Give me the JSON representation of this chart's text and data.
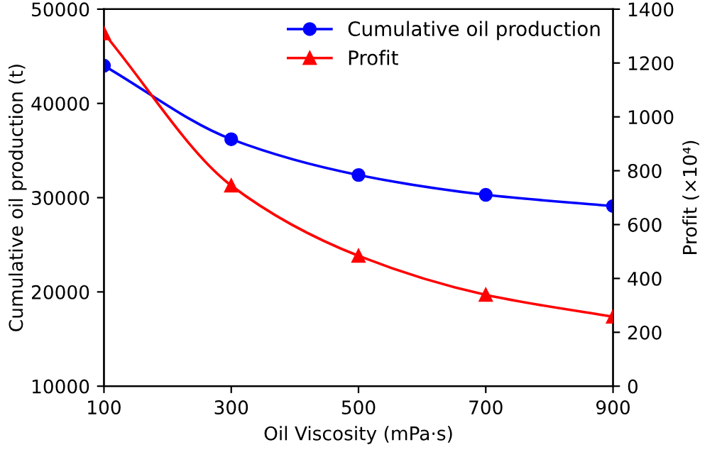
{
  "chart_data": {
    "type": "line",
    "xlabel": "Oil Viscosity (mPa·s)",
    "ylabel": "Cumulative oil production (t)",
    "y2label": "Profit (×10⁴)",
    "x": [
      100,
      300,
      500,
      700,
      900
    ],
    "xlim": [
      100,
      900
    ],
    "xticks": [
      100,
      300,
      500,
      700,
      900
    ],
    "ylim": [
      10000,
      50000
    ],
    "yticks": [
      10000,
      20000,
      30000,
      40000,
      50000
    ],
    "y2lim": [
      0,
      1400
    ],
    "y2ticks": [
      0,
      200,
      400,
      600,
      800,
      1000,
      1200,
      1400
    ],
    "legend": "top right",
    "grid": false,
    "line_style": "solid",
    "series": [
      {
        "name": "Cumulative oil production",
        "color": "#0000ff",
        "marker": "circle",
        "values": [
          44000,
          36200,
          32400,
          30300,
          29100
        ]
      },
      {
        "name": "Profit",
        "color": "#ff0000",
        "marker": "triangle",
        "axis": "y2",
        "values": [
          1310,
          745,
          484,
          339,
          258
        ]
      }
    ]
  }
}
